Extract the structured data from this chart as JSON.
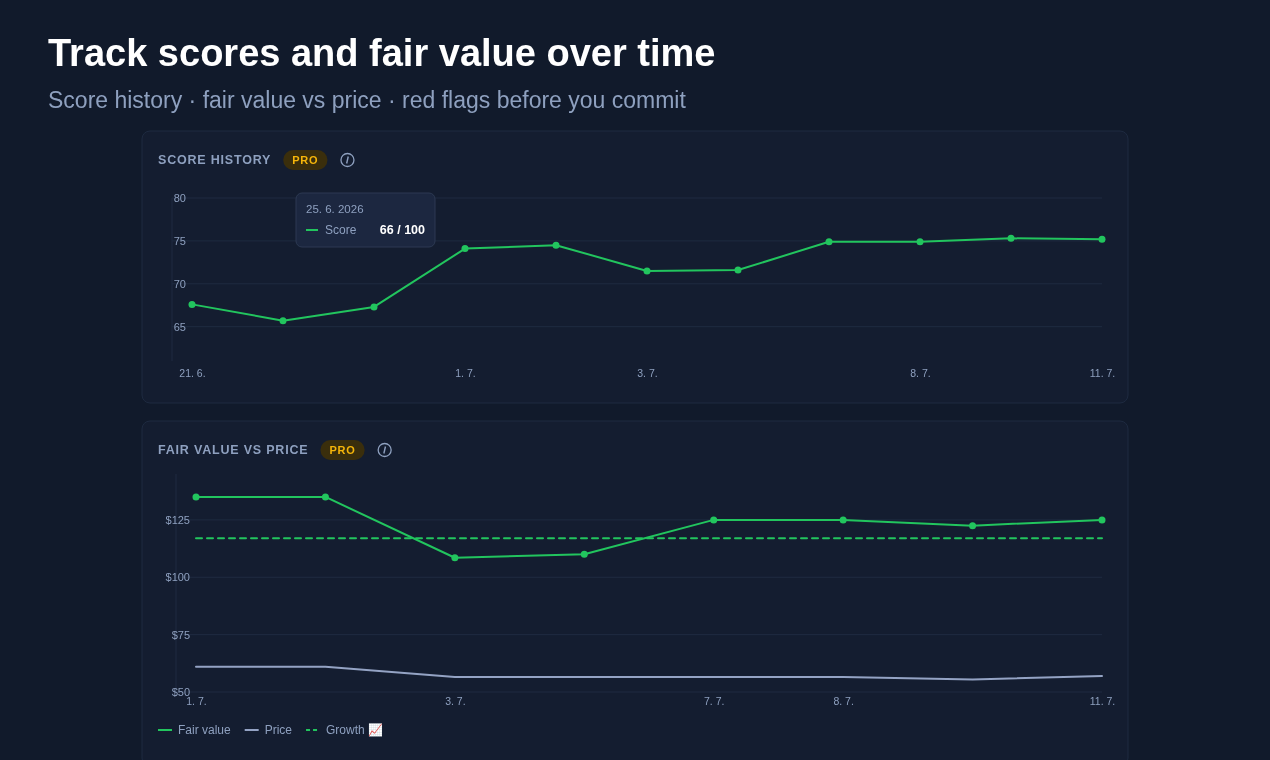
{
  "chart_data": [
    {
      "type": "other",
      "title": "Track scores and fair value over time",
      "subtitle": "Score history · fair value vs price · red flags before you commit"
    },
    {
      "type": "line",
      "title": "SCORE HISTORY",
      "annotations": [
        "PRO",
        "25. 6. 2026",
        "Score",
        "66 / 100"
      ],
      "categories": [
        "21. 6.",
        null,
        null,
        "1. 7.",
        null,
        "3. 7.",
        null,
        null,
        "8. 7.",
        null,
        "11. 7."
      ],
      "series": [
        {
          "color": "#22c55e",
          "values": [
            67.6,
            65.7,
            67.3,
            74.1,
            74.5,
            71.5,
            71.6,
            74.9,
            74.9,
            75.3,
            75.2
          ]
        }
      ],
      "ylim": [
        61,
        80
      ],
      "yticks": [
        65,
        70,
        75,
        80
      ],
      "grid": "y",
      "marker": "circle",
      "line_style": "solid"
    },
    {
      "type": "line",
      "title": "FAIR VALUE VS PRICE",
      "annotations": [
        "PRO"
      ],
      "categories": [
        "1. 7.",
        null,
        "3. 7.",
        null,
        "7. 7.",
        "8. 7.",
        null,
        "11. 7."
      ],
      "series": [
        {
          "name": "Fair value",
          "color": "#22c55e",
          "marker": "circle",
          "line_style": "solid",
          "values": [
            135,
            135,
            108.5,
            110,
            125,
            125,
            122.5,
            125
          ]
        },
        {
          "name": "Price",
          "color": "#94a3c4",
          "marker": "none",
          "line_style": "solid",
          "values": [
            61,
            61,
            56.5,
            56.5,
            56.5,
            56.5,
            55.5,
            57
          ]
        },
        {
          "name": "Growth 📈",
          "color": "#22c55e",
          "marker": "none",
          "line_style": "dashed",
          "values": [
            117,
            117,
            117,
            117,
            117,
            117,
            117,
            117
          ]
        }
      ],
      "ylim": [
        50,
        145
      ],
      "yticks": [
        {
          "value": 50,
          "label": "$50"
        },
        {
          "value": 75,
          "label": "$75"
        },
        {
          "value": 100,
          "label": "$100"
        },
        {
          "value": 125,
          "label": "$125"
        }
      ],
      "grid": "y",
      "legend": "bottom left"
    }
  ]
}
